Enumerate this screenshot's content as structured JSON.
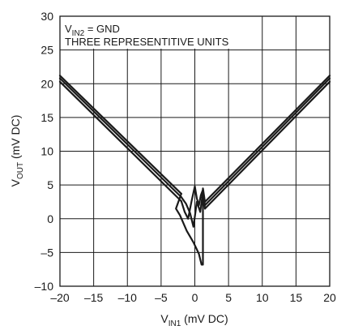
{
  "chart_data": {
    "type": "line",
    "title": "",
    "xlabel": {
      "main": "V",
      "sub": "IN1",
      "suffix": " (mV DC)"
    },
    "ylabel": {
      "main": "V",
      "sub": "OUT",
      "suffix": " (mV DC)"
    },
    "xlim": [
      -20,
      20
    ],
    "ylim": [
      -10,
      30
    ],
    "xticks": [
      -20,
      -15,
      -10,
      -5,
      0,
      5,
      10,
      15,
      20
    ],
    "yticks": [
      -10,
      -5,
      0,
      5,
      10,
      15,
      20,
      25,
      30
    ],
    "xtick_labels": [
      "–20",
      "–15",
      "–10",
      "–5",
      "0",
      "5",
      "10",
      "15",
      "20"
    ],
    "ytick_labels": [
      "–10",
      "–5",
      "0",
      "5",
      "10",
      "15",
      "20",
      "25",
      "30"
    ],
    "grid": true,
    "annotations": [
      {
        "main": "V",
        "sub": "IN2",
        "suffix": " = GND"
      },
      {
        "text": "THREE REPRESENTITIVE UNITS"
      }
    ],
    "series": [
      {
        "x": [
          -20,
          -2.0
        ],
        "y": [
          20.3,
          2.6
        ]
      },
      {
        "x": [
          -20,
          -2.0
        ],
        "y": [
          20.8,
          3.2
        ]
      },
      {
        "x": [
          -20,
          -2.0
        ],
        "y": [
          21.2,
          3.7
        ]
      },
      {
        "x": [
          1.5,
          20
        ],
        "y": [
          1.5,
          20.3
        ]
      },
      {
        "x": [
          1.5,
          20
        ],
        "y": [
          2.0,
          20.8
        ]
      },
      {
        "x": [
          1.5,
          20
        ],
        "y": [
          2.5,
          21.2
        ]
      },
      {
        "x": [
          -2.0,
          -1.5,
          -1.0,
          -0.5,
          0.0,
          0.3,
          0.6,
          0.9,
          1.2,
          1.5
        ],
        "y": [
          2.6,
          1.0,
          0.0,
          2.5,
          4.8,
          3.0,
          2.0,
          3.5,
          4.3,
          1.5
        ]
      },
      {
        "x": [
          -2.0,
          -1.3,
          -0.7,
          -0.2,
          0.3,
          0.8,
          1.2,
          1.5
        ],
        "y": [
          3.2,
          2.2,
          0.8,
          -1.2,
          2.5,
          1.0,
          4.0,
          2.0
        ]
      },
      {
        "x": [
          -2.0,
          -2.8,
          -2.2,
          -1.2,
          -0.2,
          0.6,
          1.0,
          1.2,
          1.2,
          1.2,
          1.5
        ],
        "y": [
          3.7,
          1.5,
          0.5,
          -1.8,
          -3.5,
          -5.2,
          -6.8,
          -6.8,
          0.0,
          4.5,
          2.5
        ]
      }
    ]
  }
}
